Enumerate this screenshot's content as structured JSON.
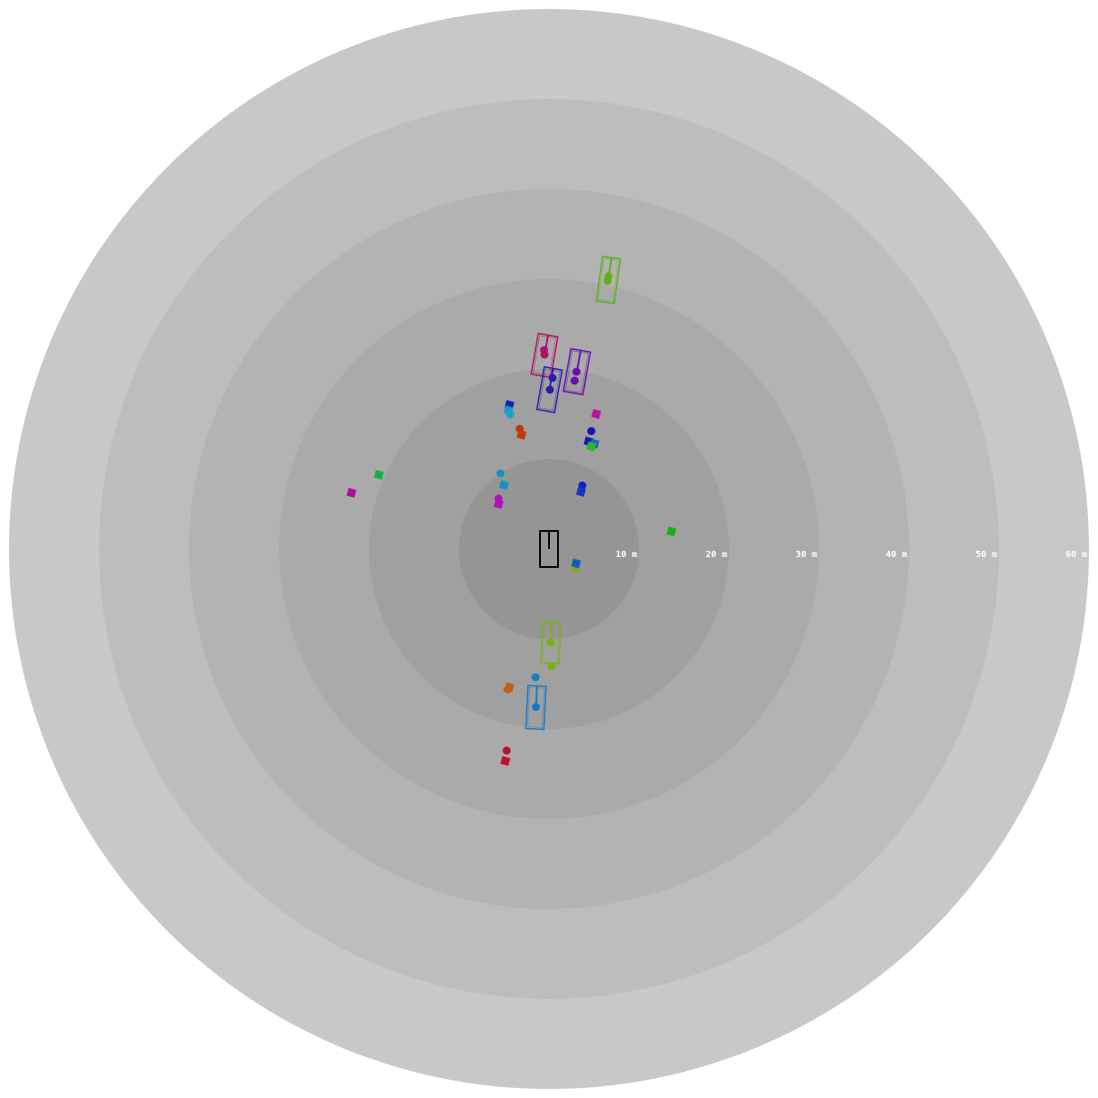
{
  "range_rings": {
    "unit": "m",
    "radii_m": [
      10,
      20,
      30,
      40,
      50,
      60
    ],
    "labels": [
      "10 m",
      "20 m",
      "30 m",
      "40 m",
      "50 m",
      "60 m"
    ],
    "colors": [
      "#959595",
      "#a0a0a0",
      "#aaaaaa",
      "#b3b3b3",
      "#bdbdbd",
      "#c8c8c8"
    ]
  },
  "ego_vehicle": {
    "color": "#000000",
    "position_m": [
      0.0,
      0.0
    ],
    "length_m": 2.0,
    "width_m": 1.0,
    "heading_deg": 0
  },
  "boxed_vehicles": [
    {
      "color": "#5bb01c",
      "position_m": [
        6.6,
        29.9
      ],
      "length_m": 2.5,
      "width_m": 1.0,
      "heading_deg": 8,
      "points_m": [
        [
          6.6,
          30.3
        ],
        [
          6.5,
          29.8
        ]
      ]
    },
    {
      "color": "#b0106a",
      "position_m": [
        -0.5,
        21.5
      ],
      "length_m": 2.3,
      "width_m": 1.1,
      "heading_deg": 10,
      "points_m": [
        [
          -0.55,
          22.1
        ],
        [
          -0.5,
          21.6
        ]
      ]
    },
    {
      "color": "#6a0cb0",
      "position_m": [
        3.1,
        19.7
      ],
      "length_m": 2.4,
      "width_m": 1.1,
      "heading_deg": 10,
      "points_m": [
        [
          3.05,
          19.7
        ],
        [
          2.85,
          18.7
        ]
      ]
    },
    {
      "color": "#2a1db0",
      "position_m": [
        0.05,
        17.7
      ],
      "length_m": 2.4,
      "width_m": 1.0,
      "heading_deg": 10,
      "points_m": [
        [
          0.4,
          19.0
        ],
        [
          0.1,
          17.7
        ]
      ]
    },
    {
      "color": "#7ab01c",
      "position_m": [
        0.2,
        -10.4
      ],
      "length_m": 2.3,
      "width_m": 1.0,
      "heading_deg": 2,
      "points_m": [
        [
          0.2,
          -10.4
        ]
      ]
    },
    {
      "color": "#1a78c0",
      "position_m": [
        -1.45,
        -17.6
      ],
      "length_m": 2.4,
      "width_m": 1.0,
      "heading_deg": 3,
      "points_m": [
        [
          -1.45,
          -17.55
        ]
      ]
    }
  ],
  "tracked_points": [
    {
      "color": "#1222b8",
      "position_m": [
        -4.4,
        16.0
      ],
      "shape": "square"
    },
    {
      "color": "#1a9ec8",
      "position_m": [
        -4.5,
        15.4
      ],
      "shape": "square"
    },
    {
      "color": "#1aa6c0",
      "position_m": [
        -4.3,
        14.95
      ],
      "shape": "dot"
    },
    {
      "color": "#c03a10",
      "position_m": [
        -3.25,
        13.35
      ],
      "shape": "dot"
    },
    {
      "color": "#c03a10",
      "position_m": [
        -3.05,
        12.7
      ],
      "shape": "square"
    },
    {
      "color": "#c0109e",
      "position_m": [
        5.25,
        15.0
      ],
      "shape": "square"
    },
    {
      "color": "#1214b0",
      "position_m": [
        4.7,
        13.1
      ],
      "shape": "dot"
    },
    {
      "color": "#1a14b0",
      "position_m": [
        4.4,
        11.95
      ],
      "shape": "square"
    },
    {
      "color": "#1a66c0",
      "position_m": [
        5.05,
        11.7
      ],
      "shape": "square"
    },
    {
      "color": "#2ab82a",
      "position_m": [
        4.7,
        11.4
      ],
      "shape": "square"
    },
    {
      "color": "#12b048",
      "position_m": [
        -18.9,
        8.25
      ],
      "shape": "square"
    },
    {
      "color": "#b010a0",
      "position_m": [
        -21.95,
        6.25
      ],
      "shape": "square"
    },
    {
      "color": "#1a90c0",
      "position_m": [
        -5.4,
        8.4
      ],
      "shape": "dot"
    },
    {
      "color": "#1a90c0",
      "position_m": [
        -5.0,
        7.1
      ],
      "shape": "square"
    },
    {
      "color": "#b012b8",
      "position_m": [
        -5.6,
        5.6
      ],
      "shape": "dot"
    },
    {
      "color": "#b012b8",
      "position_m": [
        -5.6,
        5.0
      ],
      "shape": "square"
    },
    {
      "color": "#1224b8",
      "position_m": [
        3.7,
        7.05
      ],
      "shape": "dot"
    },
    {
      "color": "#1a34c0",
      "position_m": [
        3.55,
        6.35
      ],
      "shape": "square"
    },
    {
      "color": "#1ab01a",
      "position_m": [
        13.6,
        1.95
      ],
      "shape": "square"
    },
    {
      "color": "#9ac012",
      "position_m": [
        2.75,
        -1.9
      ],
      "shape": "dot"
    },
    {
      "color": "#7ab01c",
      "position_m": [
        2.95,
        -2.15
      ],
      "shape": "dot"
    },
    {
      "color": "#1a5ac0",
      "position_m": [
        3.0,
        -1.6
      ],
      "shape": "square"
    },
    {
      "color": "#7ab01c",
      "position_m": [
        0.3,
        -13.05
      ],
      "shape": "dot"
    },
    {
      "color": "#1a7ec0",
      "position_m": [
        -1.5,
        -14.25
      ],
      "shape": "dot"
    },
    {
      "color": "#c06010",
      "position_m": [
        -4.6,
        -15.6
      ],
      "shape": "dot"
    },
    {
      "color": "#c06010",
      "position_m": [
        -4.4,
        -15.35
      ],
      "shape": "square"
    },
    {
      "color": "#c0122a",
      "position_m": [
        -4.7,
        -22.4
      ],
      "shape": "dot"
    },
    {
      "color": "#c0122a",
      "position_m": [
        -4.85,
        -23.55
      ],
      "shape": "square"
    }
  ]
}
